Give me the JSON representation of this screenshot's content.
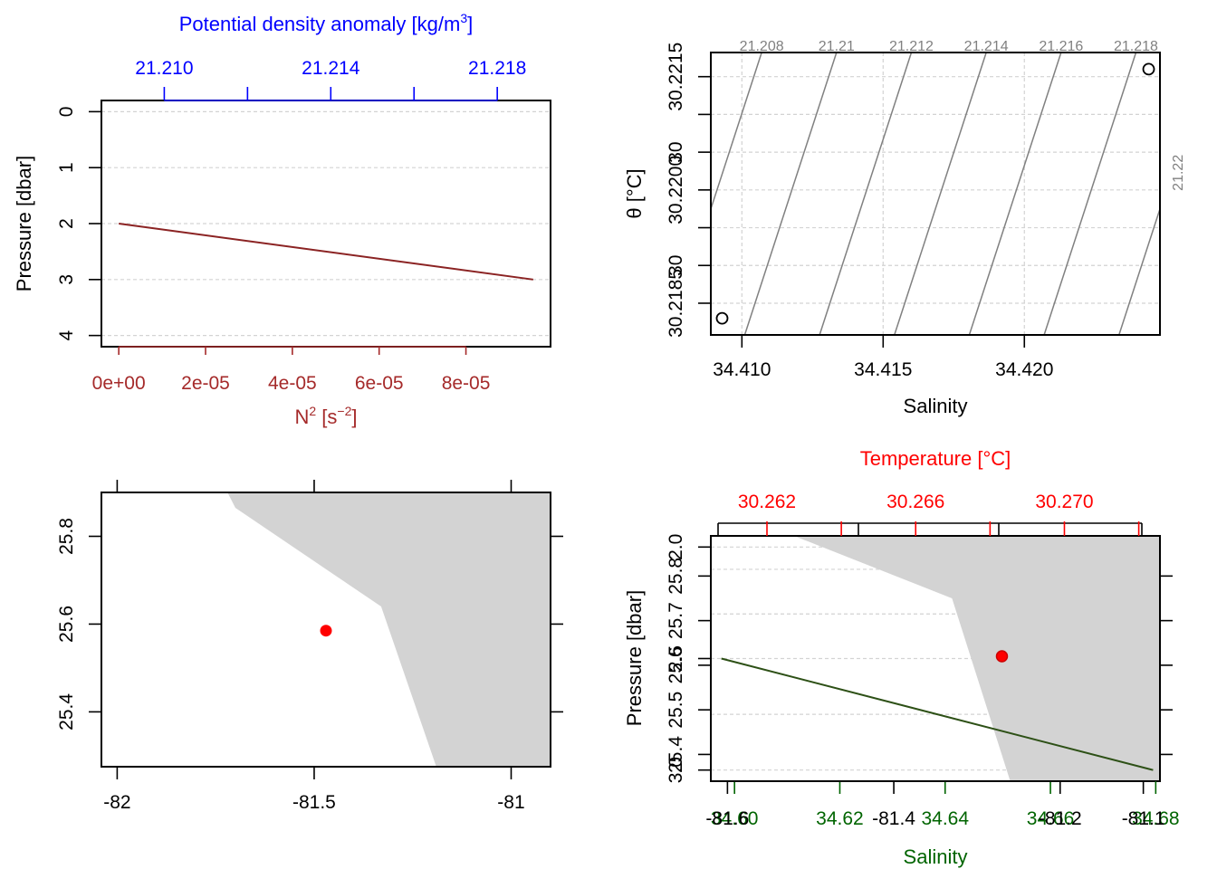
{
  "chart_data": [
    {
      "id": "n2_profile",
      "type": "line",
      "colors": {
        "bottom_axis": "#a52a2a",
        "top_axis": "#0000ff",
        "line": "#8b2323"
      },
      "xlabel_base": "N",
      "xlabel_sup": "2",
      "xlabel_open": " [s",
      "xlabel_unit_sup": "−2",
      "xlabel_close": "]",
      "toplabel_text": "Potential density anomaly [kg/m",
      "toplabel_sup": "3",
      "toplabel_close": "]",
      "ylabel": "Pressure [dbar]",
      "xlim": [
        -4e-06,
        9.95e-05
      ],
      "xticks": [
        0,
        2e-05,
        4e-05,
        6e-05,
        8e-05
      ],
      "xtick_labels": [
        "0e+00",
        "2e-05",
        "4e-05",
        "6e-05",
        "8e-05"
      ],
      "toplim": [
        21.20849,
        21.21928
      ],
      "topticks": [
        21.21,
        21.212,
        21.214,
        21.216,
        21.218
      ],
      "toptick_labels": [
        "21.210",
        "",
        "21.214",
        "",
        "21.218"
      ],
      "ylim": [
        4.2,
        -0.2
      ],
      "yticks": [
        0,
        1,
        2,
        3,
        4
      ],
      "ytick_labels": [
        "0",
        "1",
        "2",
        "3",
        "4"
      ],
      "series": [
        {
          "x": [
            0,
            9.55e-05
          ],
          "y": [
            2,
            3
          ]
        }
      ]
    },
    {
      "id": "ts_diagram",
      "type": "scatter",
      "colors": {
        "isopycnal": "#808080",
        "points": "#000000"
      },
      "xlabel": "Salinity",
      "ylabel": "θ [°C]",
      "xlim": [
        34.4089,
        34.4248
      ],
      "xticks": [
        34.41,
        34.415,
        34.42
      ],
      "xtick_labels": [
        "34.410",
        "34.415",
        "34.420"
      ],
      "ylim": [
        30.21808,
        30.22182
      ],
      "yticks": [
        30.2185,
        30.219,
        30.2195,
        30.22,
        30.2205,
        30.221,
        30.2215
      ],
      "ytick_labels": [
        "30.2185",
        "30",
        "30.2200",
        "30",
        "30.2215"
      ],
      "ytick_label_values": [
        30.2185,
        30.219,
        30.22,
        30.2205,
        30.2215
      ],
      "isopycnals": [
        {
          "label": "21.208",
          "top_x": 34.4107,
          "bottom_x": 34.40745
        },
        {
          "label": "21.21",
          "top_x": 34.41335,
          "bottom_x": 34.4101
        },
        {
          "label": "21.212",
          "top_x": 34.416,
          "bottom_x": 34.41275
        },
        {
          "label": "21.214",
          "top_x": 34.41865,
          "bottom_x": 34.4154
        },
        {
          "label": "21.216",
          "top_x": 34.4213,
          "bottom_x": 34.41805
        },
        {
          "label": "21.218",
          "top_x": 34.42395,
          "bottom_x": 34.4207
        },
        {
          "label": "21.22",
          "top_x": 34.4266,
          "bottom_x": 34.42335
        }
      ],
      "points": [
        {
          "x": 34.4093,
          "y": 30.2183
        },
        {
          "x": 34.4244,
          "y": 30.2216
        }
      ]
    },
    {
      "id": "station_map",
      "type": "scatter",
      "colors": {
        "land": "#d3d3d3",
        "station": "#ff0000"
      },
      "xlim": [
        -82.04,
        -80.9
      ],
      "xticks": [
        -82,
        -81.5,
        -81
      ],
      "xtick_labels": [
        "-82",
        "-81.5",
        "-81"
      ],
      "ylim": [
        25.275,
        25.9
      ],
      "yticks": [
        25.4,
        25.6,
        25.8
      ],
      "ytick_labels": [
        "25.4",
        "25.6",
        "25.8"
      ],
      "land": [
        [
          -81.72,
          25.9
        ],
        [
          -80.9,
          25.9
        ],
        [
          -80.9,
          25.275
        ],
        [
          -81.19,
          25.275
        ],
        [
          -81.33,
          25.64
        ],
        [
          -81.7,
          25.865
        ]
      ],
      "station": {
        "x": -81.47,
        "y": 25.585
      }
    },
    {
      "id": "overlay_profile",
      "type": "line",
      "colors": {
        "bottom_axis": "#006400",
        "top_axis": "#ff0000",
        "line": "#2d5016",
        "land": "#d3d3d3",
        "station": "#ff0000"
      },
      "xlabel": "Salinity",
      "toplabel": "Temperature [°C]",
      "ylabel": "Pressure [dbar]",
      "salinity_lim": [
        34.5955,
        34.6808
      ],
      "salinity_ticks": [
        34.6,
        34.62,
        34.64,
        34.66,
        34.68
      ],
      "salinity_tick_labels": [
        "34.60",
        "34.62",
        "34.64",
        "34.66",
        "34.68"
      ],
      "temperature_lim": [
        30.26049,
        30.27257
      ],
      "temperature_ticks": [
        30.262,
        30.264,
        30.266,
        30.268,
        30.27,
        30.272
      ],
      "temperature_tick_labels": [
        "30.262",
        "",
        "30.266",
        "",
        "30.270",
        ""
      ],
      "ylim": [
        3.05,
        1.95
      ],
      "yticks": [
        2.0,
        2.5,
        3.0
      ],
      "ytick_labels": [
        "2.0",
        "2.5",
        "3.0"
      ],
      "grid_lines": [
        2.0,
        2.1,
        2.3,
        2.5,
        2.75,
        3.0
      ],
      "series": [
        {
          "x": [
            34.5975,
            34.6795
          ],
          "y": [
            2.5,
            3.0
          ]
        }
      ],
      "map_xlim": [
        -81.62,
        -81.08
      ],
      "map_xticks": [
        -81.6,
        -81.4,
        -81.2,
        -81.1
      ],
      "map_xtick_labels": [
        "-81.6",
        "-81.4",
        "-81.2",
        "-81.1"
      ],
      "map_ylim": [
        25.34,
        25.89
      ],
      "map_yticks": [
        25.4,
        25.5,
        25.6,
        25.7,
        25.8
      ],
      "map_ytick_labels": [
        "25.4",
        "25.5",
        "25.6",
        "25.7",
        "25.8"
      ],
      "map_land": [
        [
          -81.63,
          25.9
        ],
        [
          -81.07,
          25.9
        ],
        [
          -81.07,
          25.33
        ],
        [
          -81.26,
          25.33
        ],
        [
          -81.33,
          25.75
        ],
        [
          -81.52,
          25.89
        ]
      ],
      "map_station": {
        "x": -81.27,
        "y": 25.62
      }
    }
  ]
}
